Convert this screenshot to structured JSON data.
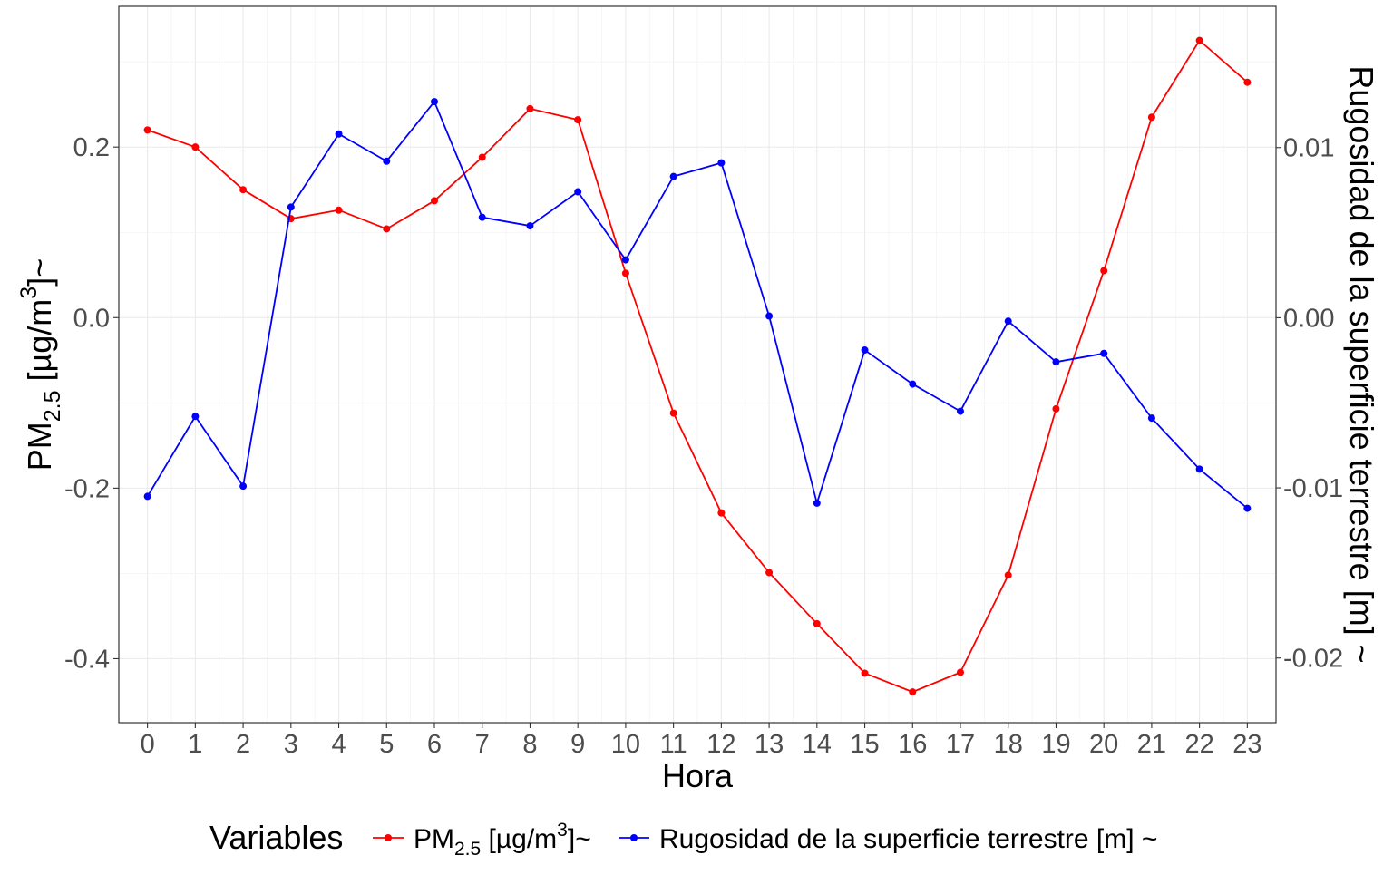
{
  "chart_data": {
    "type": "line",
    "x": [
      0,
      1,
      2,
      3,
      4,
      5,
      6,
      7,
      8,
      9,
      10,
      11,
      12,
      13,
      14,
      15,
      16,
      17,
      18,
      19,
      20,
      21,
      22,
      23
    ],
    "x_tick_labels": [
      "0",
      "1",
      "2",
      "3",
      "4",
      "5",
      "6",
      "7",
      "8",
      "9",
      "10",
      "11",
      "12",
      "13",
      "14",
      "15",
      "16",
      "17",
      "18",
      "19",
      "20",
      "21",
      "22",
      "23"
    ],
    "xlabel": "Hora",
    "ylabel_left": {
      "main": "PM",
      "sub": "2.5",
      "unit_pre": " [µg/m",
      "sup": "3",
      "unit_post": "]~"
    },
    "ylabel_right": "Rugosidad de la superficie terrestre [m] ~",
    "ylim_left": [
      -0.475,
      0.365
    ],
    "ylim_right": [
      -0.0238,
      0.0183
    ],
    "y_ticks_left": [
      {
        "value": 0.2,
        "label": "0.2"
      },
      {
        "value": 0.0,
        "label": "0.0"
      },
      {
        "value": -0.2,
        "label": "-0.2"
      },
      {
        "value": -0.4,
        "label": "-0.4"
      }
    ],
    "y_ticks_right": [
      {
        "value": 0.01,
        "label": "0.01"
      },
      {
        "value": 0.0,
        "label": "0.00"
      },
      {
        "value": -0.01,
        "label": "-0.01"
      },
      {
        "value": -0.02,
        "label": "-0.02"
      }
    ],
    "grid": true,
    "series": [
      {
        "name": "PM2.5 [µg/m3]~",
        "axis": "left",
        "color": "#ff0000",
        "values": [
          0.22,
          0.2,
          0.15,
          0.116,
          0.126,
          0.104,
          0.137,
          0.188,
          0.245,
          0.232,
          0.052,
          -0.112,
          -0.229,
          -0.299,
          -0.359,
          -0.417,
          -0.439,
          -0.416,
          -0.302,
          -0.107,
          0.055,
          0.235,
          0.325,
          0.276
        ]
      },
      {
        "name": "Rugosidad de la superficie terrestre [m] ~",
        "axis": "right",
        "color": "#0000ff",
        "values": [
          -0.0105,
          -0.0058,
          -0.0099,
          0.0065,
          0.0108,
          0.0092,
          0.0127,
          0.0059,
          0.0054,
          0.0074,
          0.0034,
          0.0083,
          0.0091,
          0.0001,
          -0.0109,
          -0.0019,
          -0.0039,
          -0.0055,
          -0.0002,
          -0.0026,
          -0.0021,
          -0.0059,
          -0.0089,
          -0.0112
        ]
      }
    ],
    "legend": {
      "title": "Variables",
      "position": "bottom",
      "items": [
        {
          "main": "PM",
          "sub": "2.5",
          "unit_pre": " [µg/m",
          "sup": "3",
          "unit_post": "]~",
          "color": "#ff0000"
        },
        {
          "text": "Rugosidad de la superficie terrestre [m] ~",
          "color": "#0000ff"
        }
      ]
    }
  }
}
